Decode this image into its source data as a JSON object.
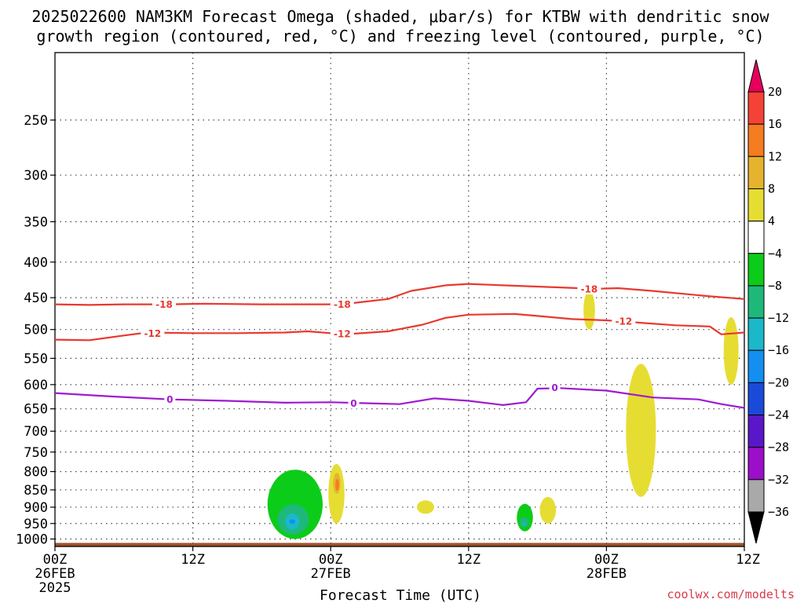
{
  "title": {
    "line1": "2025022600 NAM3KM Forecast Omega (shaded, μbar/s) for KTBW with dendritic snow",
    "line2": "growth region (contoured, red, °C) and freezing level (contoured, purple, °C)"
  },
  "credit": "coolwx.com/modelts",
  "colors": {
    "temp_contour": "#e8392f",
    "freezing_contour": "#9e1ad2",
    "ground": "#a0522d",
    "grid": "#444444"
  },
  "chart_data": {
    "type": "heatmap",
    "title": "2025022600 NAM3KM Forecast Omega (shaded, μbar/s) for KTBW with dendritic snow growth region (contoured, red, °C) and freezing level (contoured, purple, °C)",
    "xlabel": "Forecast Time (UTC)",
    "ylabel": "",
    "x_ticks": [
      {
        "hour": 0,
        "label": [
          "00Z",
          "26FEB",
          "2025"
        ]
      },
      {
        "hour": 12,
        "label": [
          "12Z"
        ]
      },
      {
        "hour": 24,
        "label": [
          "00Z",
          "27FEB"
        ]
      },
      {
        "hour": 36,
        "label": [
          "12Z"
        ]
      },
      {
        "hour": 48,
        "label": [
          "00Z",
          "28FEB"
        ]
      },
      {
        "hour": 60,
        "label": [
          "12Z"
        ]
      }
    ],
    "x_range_hours": [
      0,
      60
    ],
    "y_axis": "pressure (hPa), log scale",
    "y_ticks": [
      250,
      300,
      350,
      400,
      450,
      500,
      550,
      600,
      650,
      700,
      750,
      800,
      850,
      900,
      950,
      1000
    ],
    "y_range": [
      1025,
      200
    ],
    "grid": true,
    "colorbar": {
      "levels": [
        "20",
        "16",
        "12",
        "8",
        "4",
        "−4",
        "−8",
        "−12",
        "−16",
        "−20",
        "−24",
        "−28",
        "−32",
        "−36"
      ],
      "colors": [
        "#e6005c",
        "#f44336",
        "#f57c1f",
        "#e6b32e",
        "#e6dd33",
        "#ffffff",
        "#0ccc1a",
        "#1eb87a",
        "#1ab8c9",
        "#148ef0",
        "#1a4ad8",
        "#5a17c9",
        "#9c0ec9",
        "#a9a9a9",
        "#000000"
      ]
    },
    "contours": [
      {
        "name": "-18",
        "color": "temp",
        "points": [
          [
            0,
            460
          ],
          [
            3,
            461
          ],
          [
            6,
            460
          ],
          [
            10,
            460
          ],
          [
            13,
            459
          ],
          [
            18,
            460
          ],
          [
            24,
            460
          ],
          [
            26,
            458
          ],
          [
            29,
            452
          ],
          [
            31,
            440
          ],
          [
            34,
            432
          ],
          [
            36,
            430
          ],
          [
            39,
            432
          ],
          [
            44,
            435
          ],
          [
            47,
            437
          ],
          [
            49,
            436
          ],
          [
            52,
            440
          ],
          [
            57,
            448
          ],
          [
            60,
            452
          ]
        ],
        "labels": [
          [
            9.5,
            460
          ],
          [
            25,
            460
          ],
          [
            46.5,
            437
          ]
        ]
      },
      {
        "name": "-12",
        "color": "temp",
        "points": [
          [
            0,
            517
          ],
          [
            3,
            518
          ],
          [
            6,
            510
          ],
          [
            8,
            505
          ],
          [
            12,
            506
          ],
          [
            16,
            506
          ],
          [
            20,
            505
          ],
          [
            22,
            503
          ],
          [
            24,
            506
          ],
          [
            26,
            507
          ],
          [
            29,
            503
          ],
          [
            32,
            492
          ],
          [
            34,
            481
          ],
          [
            36,
            476
          ],
          [
            40,
            475
          ],
          [
            42,
            478
          ],
          [
            45,
            483
          ],
          [
            48,
            485
          ],
          [
            51,
            489
          ],
          [
            54,
            493
          ],
          [
            57,
            495
          ],
          [
            58,
            508
          ],
          [
            60,
            505
          ]
        ],
        "labels": [
          [
            8.5,
            506
          ],
          [
            25,
            507
          ],
          [
            49.5,
            486
          ]
        ]
      },
      {
        "name": "0",
        "color": "freezing",
        "points": [
          [
            0,
            617
          ],
          [
            5,
            624
          ],
          [
            10,
            630
          ],
          [
            15,
            633
          ],
          [
            20,
            637
          ],
          [
            24,
            636
          ],
          [
            27,
            638
          ],
          [
            30,
            640
          ],
          [
            33,
            628
          ],
          [
            36,
            633
          ],
          [
            39,
            642
          ],
          [
            41,
            636
          ],
          [
            42,
            608
          ],
          [
            44,
            607
          ],
          [
            48,
            612
          ],
          [
            52,
            626
          ],
          [
            56,
            630
          ],
          [
            58,
            640
          ],
          [
            60,
            648
          ]
        ],
        "labels": [
          [
            10,
            630
          ],
          [
            26,
            638
          ],
          [
            43.5,
            606
          ]
        ]
      }
    ],
    "omega_features": [
      {
        "type": "ascent",
        "min_value": -24,
        "hours": [
          18.5,
          23.3
        ],
        "pressure_hPa": [
          795,
          1000
        ]
      },
      {
        "type": "descent",
        "max_value": 12,
        "hours": [
          23.8,
          25.2
        ],
        "pressure_hPa": [
          780,
          950
        ]
      },
      {
        "type": "descent",
        "max_value": 8,
        "hours": [
          31.5,
          33
        ],
        "pressure_hPa": [
          880,
          920
        ]
      },
      {
        "type": "ascent",
        "min_value": -16,
        "hours": [
          40.2,
          41.6
        ],
        "pressure_hPa": [
          890,
          975
        ]
      },
      {
        "type": "descent",
        "max_value": 8,
        "hours": [
          42.2,
          43.6
        ],
        "pressure_hPa": [
          870,
          950
        ]
      },
      {
        "type": "descent",
        "max_value": 8,
        "hours": [
          46,
          47
        ],
        "pressure_hPa": [
          440,
          500
        ]
      },
      {
        "type": "descent",
        "max_value": 8,
        "hours": [
          49.7,
          52.3
        ],
        "pressure_hPa": [
          560,
          870
        ]
      },
      {
        "type": "descent",
        "max_value": 8,
        "hours": [
          58.2,
          59.5
        ],
        "pressure_hPa": [
          480,
          600
        ]
      }
    ]
  }
}
